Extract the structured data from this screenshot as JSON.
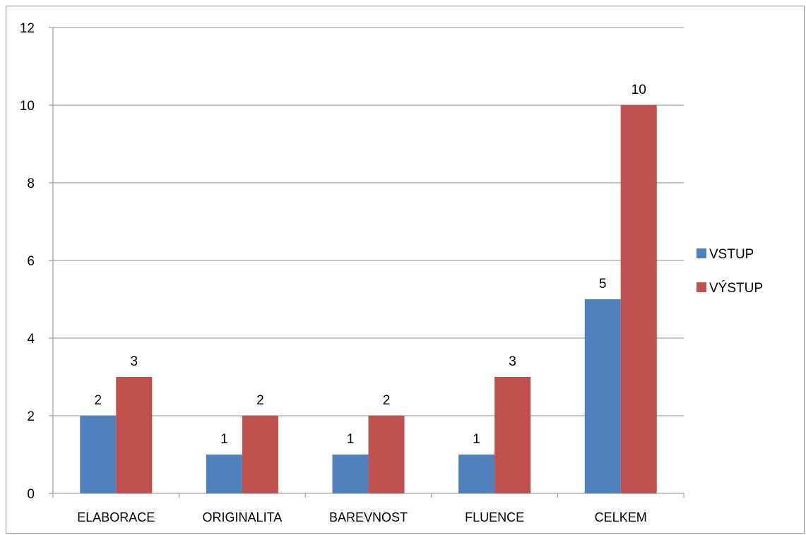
{
  "chart_data": {
    "type": "bar",
    "categories": [
      "ELABORACE",
      "ORIGINALITA",
      "BAREVNOST",
      "FLUENCE",
      "CELKEM"
    ],
    "series": [
      {
        "name": "VSTUP",
        "color": "#4f81bd",
        "values": [
          2,
          1,
          1,
          1,
          5
        ]
      },
      {
        "name": "VÝSTUP",
        "color": "#c0504d",
        "values": [
          3,
          2,
          2,
          3,
          10
        ]
      }
    ],
    "yticks": [
      "0",
      "2",
      "4",
      "6",
      "8",
      "10",
      "12"
    ],
    "ylim": [
      0,
      12
    ],
    "grid": true,
    "legend_position": "right",
    "data_labels": true
  }
}
